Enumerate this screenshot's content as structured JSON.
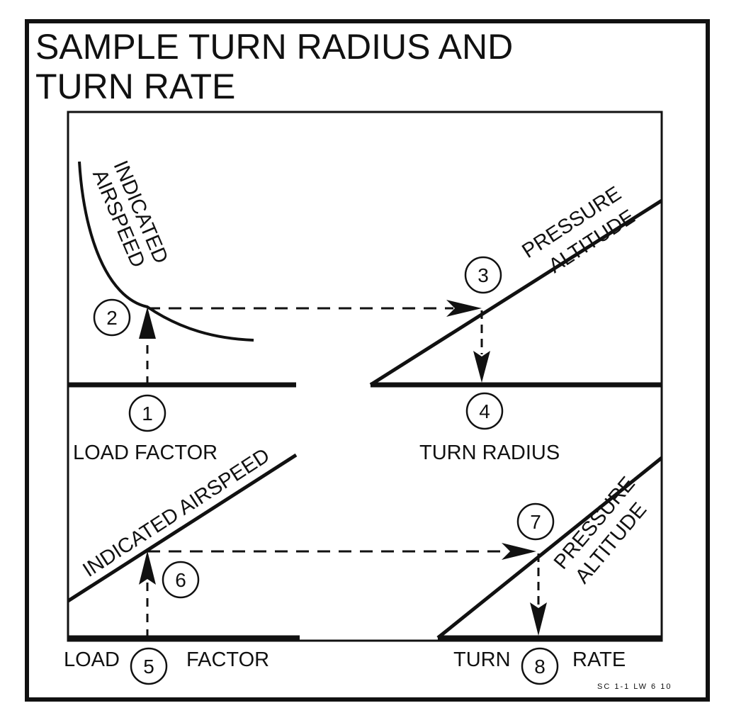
{
  "title_line1": "SAMPLE TURN RADIUS AND",
  "title_line2": "TURN RATE",
  "top_chart": {
    "curve_label_line1": "INDICATED",
    "curve_label_line2": "AIRSPEED",
    "pressure_label_line1": "PRESSURE",
    "pressure_label_line2": "ALTITUDE",
    "left_axis_label": "LOAD FACTOR",
    "right_axis_label": "TURN RADIUS"
  },
  "bottom_chart": {
    "airspeed_label": "INDICATED AIRSPEED",
    "pressure_label_line1": "PRESSURE",
    "pressure_label_line2": "ALTITUDE",
    "left_axis_word1": "LOAD",
    "left_axis_word2": "FACTOR",
    "right_axis_word1": "TURN",
    "right_axis_word2": "RATE"
  },
  "steps": [
    "1",
    "2",
    "3",
    "4",
    "5",
    "6",
    "7",
    "8"
  ],
  "figure_code": "SC 1-1 LW 6 10"
}
